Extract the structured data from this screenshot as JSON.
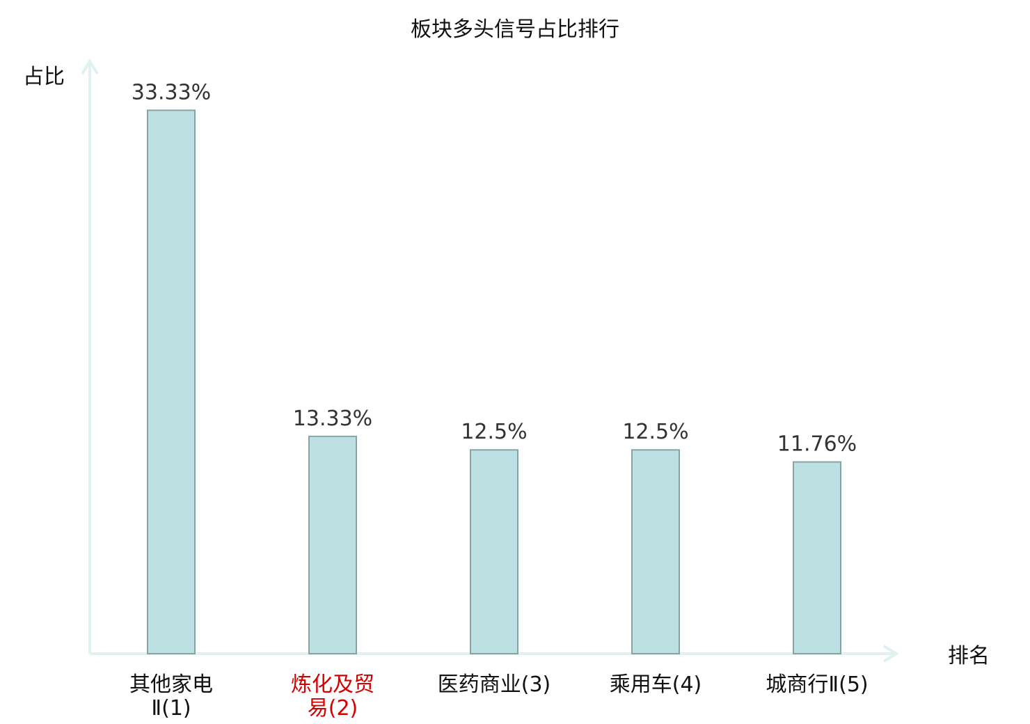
{
  "chart_data": {
    "type": "bar",
    "title": "板块多头信号占比排行",
    "ylabel": "占比",
    "xlabel": "排名",
    "ylim": [
      0,
      34.5
    ],
    "grid": false,
    "categories": [
      {
        "lines": [
          "其他家电",
          "Ⅱ(1)"
        ],
        "highlight": false
      },
      {
        "lines": [
          "炼化及贸",
          "易(2)"
        ],
        "highlight": true
      },
      {
        "lines": [
          "医药商业(3)"
        ],
        "highlight": false
      },
      {
        "lines": [
          "乘用车(4)"
        ],
        "highlight": false
      },
      {
        "lines": [
          "城商行Ⅱ(5)"
        ],
        "highlight": false
      }
    ],
    "values": [
      33.33,
      13.33,
      12.5,
      12.5,
      11.76
    ],
    "value_labels": [
      "33.33%",
      "13.33%",
      "12.5%",
      "12.5%",
      "11.76%"
    ],
    "colors": {
      "bar_fill": "#bde1e3",
      "bar_stroke": "#86a4a6",
      "axis": "#dff2ef",
      "tick_text": "#111111",
      "highlight_text": "#d40000"
    }
  }
}
